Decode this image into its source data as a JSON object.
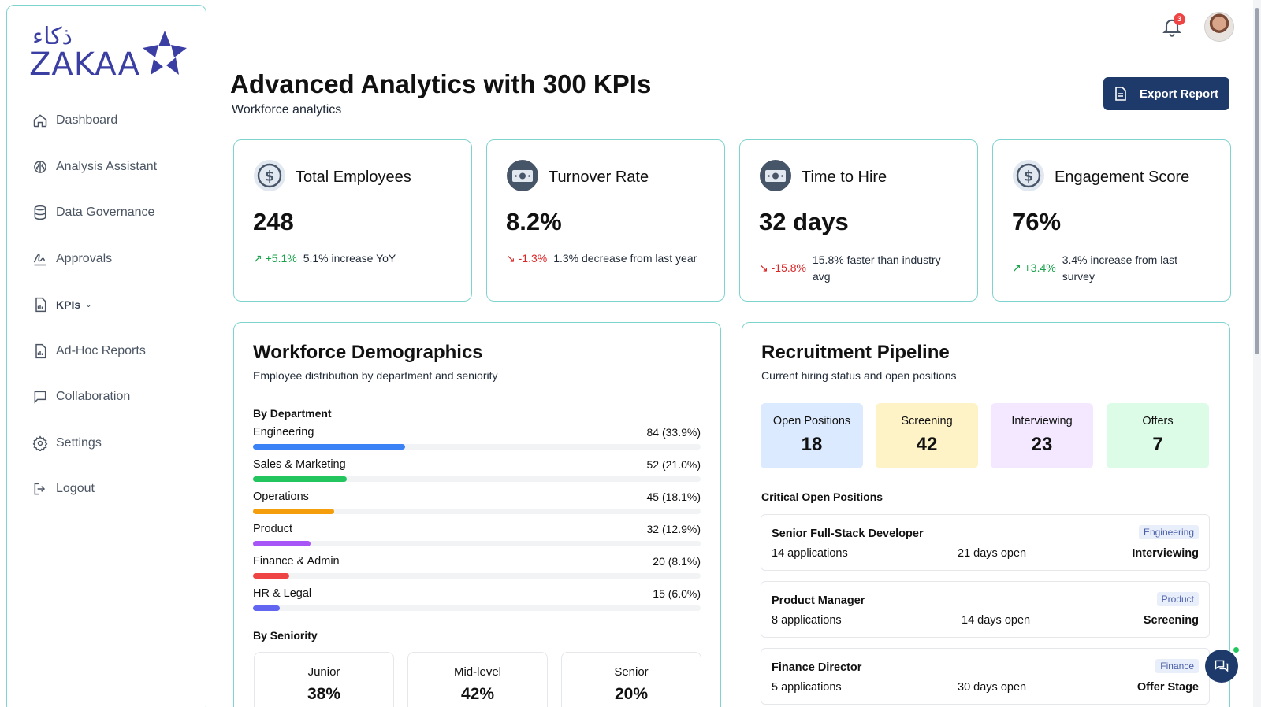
{
  "brand": {
    "name": "ZAKAA",
    "arabic": "ذكاء",
    "color": "#3b3fa3"
  },
  "sidebar": {
    "items": [
      {
        "label": "Dashboard",
        "icon": "home-icon"
      },
      {
        "label": "Analysis Assistant",
        "icon": "brain-icon"
      },
      {
        "label": "Data Governance",
        "icon": "database-icon"
      },
      {
        "label": "Approvals",
        "icon": "signature-icon"
      },
      {
        "label": "KPIs",
        "icon": "report-icon"
      },
      {
        "label": "Ad-Hoc Reports",
        "icon": "report-icon"
      },
      {
        "label": "Collaboration",
        "icon": "chat-icon"
      },
      {
        "label": "Settings",
        "icon": "gear-icon"
      },
      {
        "label": "Logout",
        "icon": "logout-icon"
      }
    ]
  },
  "header": {
    "notification_count": "3"
  },
  "page": {
    "title": "Advanced Analytics with 300 KPIs",
    "subtitle": "Workforce analytics",
    "export_label": "Export Report"
  },
  "kpis": [
    {
      "title": "Total Employees",
      "value": "248",
      "change": "+5.1%",
      "direction": "up",
      "desc": "5.1% increase YoY",
      "icon": "dollar-coin-icon"
    },
    {
      "title": "Turnover Rate",
      "value": "8.2%",
      "change": "-1.3%",
      "direction": "down",
      "desc": "1.3% decrease from last year",
      "icon": "banknote-icon"
    },
    {
      "title": "Time to Hire",
      "value": "32 days",
      "change": "-15.8%",
      "direction": "down",
      "desc": "15.8% faster than industry avg",
      "icon": "banknote-icon"
    },
    {
      "title": "Engagement Score",
      "value": "76%",
      "change": "+3.4%",
      "direction": "up",
      "desc": "3.4% increase from last survey",
      "icon": "dollar-coin-icon"
    }
  ],
  "demographics": {
    "title": "Workforce Demographics",
    "subtitle": "Employee distribution by department and seniority",
    "by_department_label": "By Department",
    "departments": [
      {
        "name": "Engineering",
        "value": "84 (33.9%)",
        "pct": 33.9,
        "color": "#3b82f6"
      },
      {
        "name": "Sales & Marketing",
        "value": "52 (21.0%)",
        "pct": 21.0,
        "color": "#22c55e"
      },
      {
        "name": "Operations",
        "value": "45 (18.1%)",
        "pct": 18.1,
        "color": "#f59e0b"
      },
      {
        "name": "Product",
        "value": "32 (12.9%)",
        "pct": 12.9,
        "color": "#a855f7"
      },
      {
        "name": "Finance & Admin",
        "value": "20 (8.1%)",
        "pct": 8.1,
        "color": "#ef4444"
      },
      {
        "name": "HR & Legal",
        "value": "15 (6.0%)",
        "pct": 6.0,
        "color": "#6366f1"
      }
    ],
    "by_seniority_label": "By Seniority",
    "seniority": [
      {
        "label": "Junior",
        "value": "38%"
      },
      {
        "label": "Mid-level",
        "value": "42%"
      },
      {
        "label": "Senior",
        "value": "20%"
      }
    ]
  },
  "recruitment": {
    "title": "Recruitment Pipeline",
    "subtitle": "Current hiring status and open positions",
    "stages": [
      {
        "label": "Open Positions",
        "value": "18",
        "color": "#dbeafe"
      },
      {
        "label": "Screening",
        "value": "42",
        "color": "#fef3c7"
      },
      {
        "label": "Interviewing",
        "value": "23",
        "color": "#f3e8ff"
      },
      {
        "label": "Offers",
        "value": "7",
        "color": "#dcfce7"
      }
    ],
    "critical_label": "Critical Open Positions",
    "positions": [
      {
        "title": "Senior Full-Stack Developer",
        "applications": "14 applications",
        "days": "21 days open",
        "tag": "Engineering",
        "status": "Interviewing"
      },
      {
        "title": "Product Manager",
        "applications": "8 applications",
        "days": "14 days open",
        "tag": "Product",
        "status": "Screening"
      },
      {
        "title": "Finance Director",
        "applications": "5 applications",
        "days": "30 days open",
        "tag": "Finance",
        "status": "Offer Stage"
      }
    ]
  }
}
